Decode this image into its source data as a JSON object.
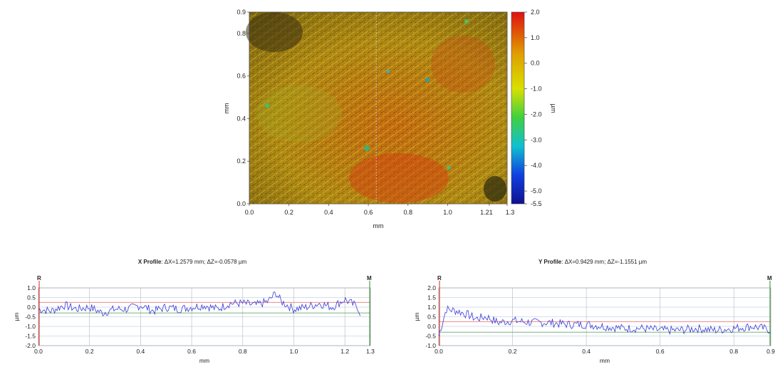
{
  "colors": {
    "profile_line": "#3a3ad8",
    "ref_line_red": "#e06060",
    "ref_line_green": "#4a9a4a",
    "ref_marker_r": "#d82020",
    "ref_marker_m": "#2a8a2a",
    "grid": "#b8b8b8",
    "grid_blue": "#a8c0e0"
  },
  "chart_data": [
    {
      "type": "heatmap",
      "xlabel": "mm",
      "ylabel": "mm",
      "x_ticks": [
        "0.0",
        "0.2",
        "0.4",
        "0.6",
        "0.8",
        "1.0",
        "1.21",
        "1.3"
      ],
      "y_ticks": [
        "0.0",
        "0.2",
        "0.4",
        "0.6",
        "0.8",
        "0.9"
      ],
      "xlim": [
        0,
        1.3
      ],
      "ylim": [
        0,
        0.9
      ],
      "colorbar": {
        "label": "µm",
        "ticks": [
          "2.0",
          "1.0",
          "0.0",
          "-1.0",
          "-2.0",
          "-3.0",
          "-4.0",
          "-5.0",
          "-5.5"
        ],
        "range": [
          -5.5,
          2.0
        ]
      },
      "profile_cut_x": 0.64
    },
    {
      "type": "line",
      "title_bold": "X Profile",
      "title_rest": ": ΔX=1.2579 mm; ΔZ=-0.0578 µm",
      "xlabel": "mm",
      "ylabel": "µm",
      "x_ticks": [
        "0.0",
        "0.2",
        "0.4",
        "0.6",
        "0.8",
        "1.0",
        "1.2",
        "1.3"
      ],
      "y_ticks": [
        "1.0",
        "0.5",
        "0.0",
        "-0.5",
        "-1.0",
        "-1.5",
        "-2.0"
      ],
      "xlim": [
        0,
        1.3
      ],
      "ylim": [
        -2.0,
        1.0
      ],
      "marker_left": "R",
      "marker_right": "M",
      "series": [
        {
          "x": [
            0.0,
            0.05,
            0.1,
            0.15,
            0.2,
            0.25,
            0.3,
            0.35,
            0.4,
            0.45,
            0.5,
            0.55,
            0.6,
            0.65,
            0.7,
            0.75,
            0.8,
            0.85,
            0.9,
            0.93,
            0.95,
            1.0,
            1.05,
            1.1,
            1.15,
            1.2,
            1.25,
            1.26
          ],
          "y": [
            -0.1,
            -0.2,
            0.1,
            -0.1,
            0.0,
            -0.3,
            -0.1,
            -0.1,
            0.1,
            -0.2,
            0.0,
            -0.1,
            0.0,
            0.1,
            -0.1,
            0.2,
            0.2,
            0.1,
            0.3,
            0.75,
            0.3,
            -0.1,
            0.0,
            0.2,
            0.0,
            0.4,
            0.0,
            -0.3
          ]
        }
      ]
    },
    {
      "type": "line",
      "title_bold": "Y Profile",
      "title_rest": ": ΔX=0.9429 mm; ΔZ=-1.1551 µm",
      "xlabel": "mm",
      "ylabel": "µm",
      "x_ticks": [
        "0.0",
        "0.2",
        "0.4",
        "0.6",
        "0.8",
        "0.9"
      ],
      "y_ticks": [
        "2.0",
        "1.5",
        "1.0",
        "0.5",
        "0.0",
        "-0.5",
        "-1.0"
      ],
      "xlim": [
        0,
        0.9
      ],
      "ylim": [
        -1.0,
        2.0
      ],
      "marker_left": "R",
      "marker_right": "M",
      "series": [
        {
          "x": [
            0.0,
            0.02,
            0.05,
            0.08,
            0.1,
            0.13,
            0.16,
            0.2,
            0.25,
            0.3,
            0.35,
            0.4,
            0.45,
            0.5,
            0.55,
            0.6,
            0.65,
            0.7,
            0.75,
            0.8,
            0.85,
            0.88,
            0.9
          ],
          "y": [
            -0.5,
            0.9,
            0.8,
            0.6,
            0.4,
            0.5,
            0.2,
            0.3,
            0.2,
            0.2,
            0.1,
            0.1,
            0.0,
            -0.1,
            -0.1,
            -0.2,
            -0.2,
            -0.1,
            -0.2,
            -0.1,
            0.0,
            -0.1,
            -0.2
          ]
        }
      ]
    }
  ]
}
